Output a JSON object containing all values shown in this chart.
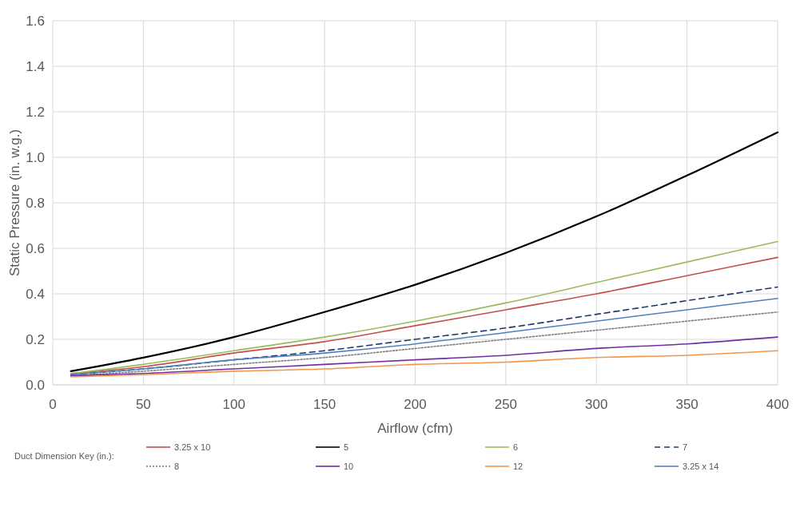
{
  "chart_data": {
    "type": "line",
    "xlabel": "Airflow (cfm)",
    "ylabel": "Static Pressure (in. w.g.)",
    "legend_title": "Duct Dimension Key (in.):",
    "legend": "bottom",
    "grid": true,
    "x": [
      10,
      50,
      100,
      150,
      200,
      250,
      300,
      350,
      400
    ],
    "xlim": [
      0,
      400
    ],
    "xticks": [
      0,
      50,
      100,
      150,
      200,
      250,
      300,
      350,
      400
    ],
    "ylim": [
      0,
      1.6
    ],
    "yticks": [
      {
        "value": 0,
        "label": "0.0"
      },
      0.2,
      0.4,
      0.6,
      0.8,
      {
        "value": 1,
        "label": "1.0"
      },
      1.2,
      1.4,
      1.6
    ],
    "series": [
      {
        "name": "3.25 x 10",
        "color": "#c0504d",
        "line_style": "solid",
        "values": [
          0.05,
          0.08,
          0.14,
          0.19,
          0.26,
          0.33,
          0.4,
          0.48,
          0.56
        ]
      },
      {
        "name": "5",
        "color": "#000000",
        "line_style": "solid",
        "values": [
          0.06,
          0.12,
          0.21,
          0.32,
          0.44,
          0.58,
          0.74,
          0.92,
          1.11
        ]
      },
      {
        "name": "6",
        "color": "#9bbb59",
        "line_style": "solid",
        "values": [
          0.05,
          0.09,
          0.15,
          0.21,
          0.28,
          0.36,
          0.45,
          0.54,
          0.63
        ]
      },
      {
        "name": "7",
        "color": "#1f3864",
        "line_style": "dashed",
        "values": [
          0.045,
          0.07,
          0.11,
          0.15,
          0.2,
          0.25,
          0.31,
          0.37,
          0.43
        ]
      },
      {
        "name": "8",
        "color": "#7f7f7f",
        "line_style": "dotted",
        "values": [
          0.04,
          0.06,
          0.09,
          0.12,
          0.16,
          0.2,
          0.24,
          0.28,
          0.32
        ]
      },
      {
        "name": "10",
        "color": "#7030a0",
        "line_style": "solid",
        "values": [
          0.04,
          0.05,
          0.07,
          0.09,
          0.11,
          0.13,
          0.16,
          0.18,
          0.21
        ]
      },
      {
        "name": "12",
        "color": "#f79646",
        "line_style": "solid",
        "values": [
          0.035,
          0.045,
          0.06,
          0.07,
          0.09,
          0.1,
          0.12,
          0.13,
          0.15
        ]
      },
      {
        "name": "3.25 x 14",
        "color": "#4f81bd",
        "line_style": "solid",
        "values": [
          0.045,
          0.07,
          0.11,
          0.14,
          0.18,
          0.23,
          0.28,
          0.33,
          0.38
        ]
      }
    ]
  }
}
